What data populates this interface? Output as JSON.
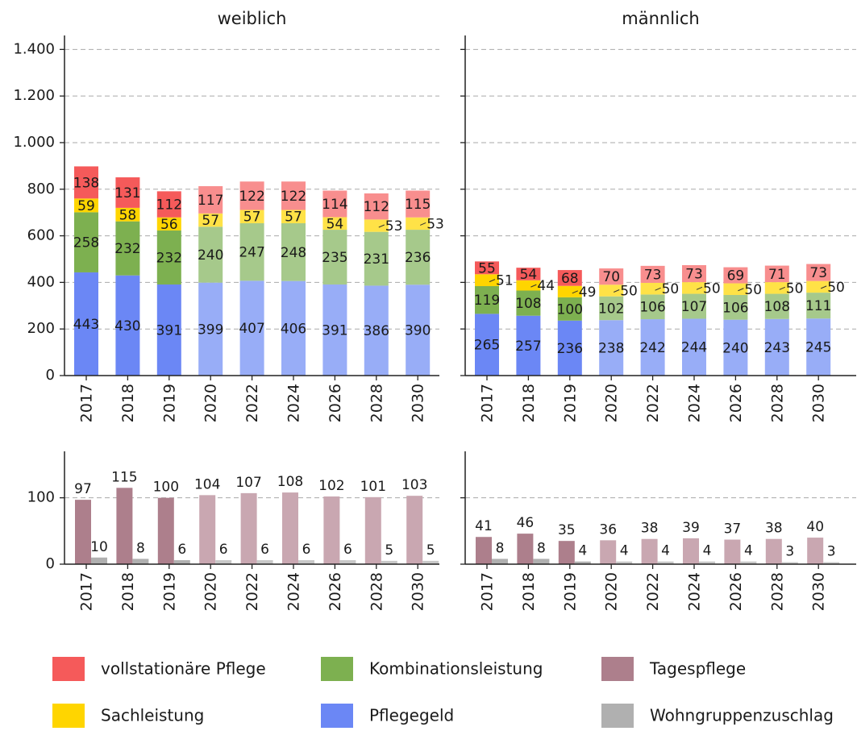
{
  "chart_data": [
    {
      "type": "stacked_bar",
      "title": "weiblich",
      "categories": [
        "2017",
        "2018",
        "2019",
        "2020",
        "2022",
        "2024",
        "2026",
        "2028",
        "2030"
      ],
      "projection_from": "2020",
      "series": [
        {
          "name": "Pflegegeld",
          "color": "#6b87f5",
          "light_color": "#98adf7",
          "values": [
            443,
            430,
            391,
            399,
            407,
            406,
            391,
            386,
            390
          ]
        },
        {
          "name": "Kombinationsleistung",
          "color": "#7db050",
          "light_color": "#a6c98b",
          "values": [
            258,
            232,
            232,
            240,
            247,
            248,
            235,
            231,
            236
          ]
        },
        {
          "name": "Sachleistung",
          "color": "#ffd500",
          "light_color": "#ffe247",
          "values": [
            59,
            58,
            56,
            57,
            57,
            57,
            54,
            53,
            53
          ]
        },
        {
          "name": "vollstationäre Pflege",
          "color": "#f55a5a",
          "light_color": "#f88e8e",
          "values": [
            138,
            131,
            112,
            117,
            122,
            122,
            114,
            112,
            115
          ]
        }
      ],
      "ylim": [
        0,
        1460
      ],
      "yticks": [
        0,
        {
          "value": 200,
          "label": "200"
        },
        {
          "value": 400,
          "label": "400"
        },
        {
          "value": 600,
          "label": "600"
        },
        {
          "value": 800,
          "label": "800"
        },
        {
          "value": 1000,
          "label": "1.000"
        },
        {
          "value": 1200,
          "label": "1.200"
        },
        {
          "value": 1400,
          "label": "1.400"
        }
      ],
      "grid": true
    },
    {
      "type": "stacked_bar",
      "title": "männlich",
      "categories": [
        "2017",
        "2018",
        "2019",
        "2020",
        "2022",
        "2024",
        "2026",
        "2028",
        "2030"
      ],
      "projection_from": "2020",
      "series": [
        {
          "color": "#6b87f5",
          "light_color": "#98adf7",
          "values": [
            265,
            257,
            236,
            238,
            242,
            244,
            240,
            243,
            245
          ]
        },
        {
          "color": "#7db050",
          "light_color": "#a6c98b",
          "values": [
            119,
            108,
            100,
            102,
            106,
            107,
            106,
            108,
            111
          ]
        },
        {
          "color": "#ffd500",
          "light_color": "#ffe247",
          "values": [
            51,
            44,
            49,
            50,
            50,
            50,
            50,
            50,
            50
          ]
        },
        {
          "color": "#f55a5a",
          "light_color": "#f88e8e",
          "values": [
            55,
            54,
            68,
            70,
            73,
            73,
            69,
            71,
            73
          ]
        }
      ],
      "ylim": [
        0,
        1460
      ],
      "yticks": [
        0,
        200,
        400,
        600,
        800,
        1000,
        1200,
        1400
      ],
      "grid": true
    },
    {
      "type": "grouped_bar",
      "categories": [
        "2017",
        "2018",
        "2019",
        "2020",
        "2022",
        "2024",
        "2026",
        "2028",
        "2030"
      ],
      "projection_from": "2020",
      "series": [
        {
          "name": "Tagespflege",
          "color": "#ad7f8c",
          "light_color": "#c9a7b1",
          "values": [
            97,
            115,
            100,
            104,
            107,
            108,
            102,
            101,
            103
          ]
        },
        {
          "name": "Wohngruppenzuschlag",
          "color": "#b0b0b0",
          "light_color": "#c8c8c8",
          "values": [
            10,
            8,
            6,
            6,
            6,
            6,
            6,
            5,
            5
          ]
        }
      ],
      "ylim": [
        0,
        170
      ],
      "yticks": [
        0,
        100
      ],
      "grid": true
    },
    {
      "type": "grouped_bar",
      "categories": [
        "2017",
        "2018",
        "2019",
        "2020",
        "2022",
        "2024",
        "2026",
        "2028",
        "2030"
      ],
      "projection_from": "2020",
      "series": [
        {
          "color": "#ad7f8c",
          "light_color": "#c9a7b1",
          "values": [
            41,
            46,
            35,
            36,
            38,
            39,
            37,
            38,
            40
          ]
        },
        {
          "color": "#b0b0b0",
          "light_color": "#c8c8c8",
          "values": [
            8,
            8,
            4,
            4,
            4,
            4,
            4,
            3,
            3
          ]
        }
      ],
      "ylim": [
        0,
        170
      ],
      "yticks": [
        0,
        100
      ],
      "grid": true
    }
  ]
}
